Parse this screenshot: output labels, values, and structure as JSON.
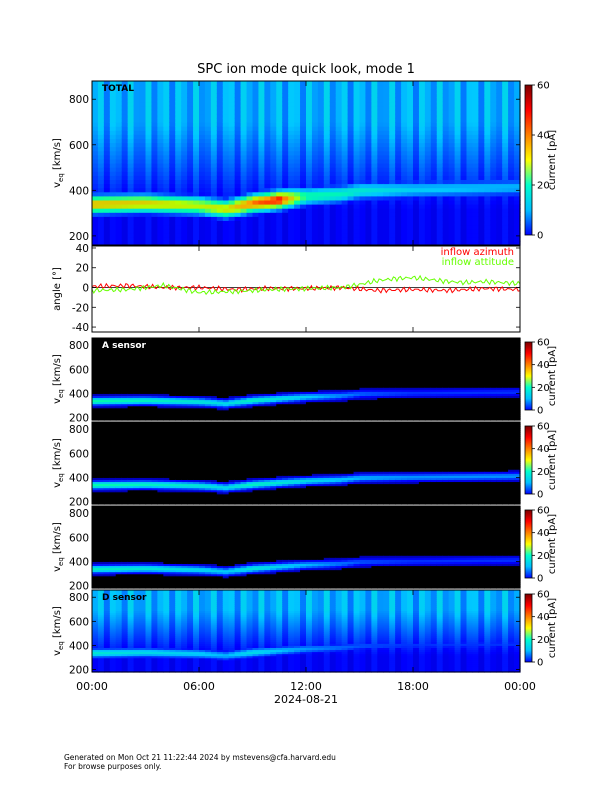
{
  "title": "SPC ion mode quick look, mode 1",
  "date_label": "2024-08-21",
  "x_ticks": [
    "00:00",
    "06:00",
    "12:00",
    "18:00",
    "00:00"
  ],
  "footer": {
    "line1": "Generated on Mon Oct 21 11:22:44 2024 by mstevens@cfa.harvard.edu",
    "line2": "For browse purposes only."
  },
  "colorbar": {
    "label": "current [pA]",
    "colors": [
      "#0000ff",
      "#00bfff",
      "#00ffcc",
      "#ffff00",
      "#ff8000",
      "#ff0000",
      "#7a0000"
    ]
  },
  "chart_data": [
    {
      "type": "heatmap",
      "panel_label": "TOTAL",
      "ylabel": "v_eq [km/s]",
      "yticks": [
        200,
        400,
        600,
        800
      ],
      "ylim": [
        160,
        880
      ],
      "colorbar_ticks": [
        0,
        20,
        40,
        60
      ],
      "colorbar_range": [
        0,
        60
      ],
      "background": "broad",
      "core_velocity_km_s": {
        "hours": [
          0,
          3,
          6,
          7.5,
          9,
          10.5,
          12,
          14,
          15,
          18,
          21,
          24
        ],
        "values": [
          340,
          345,
          335,
          320,
          345,
          360,
          375,
          385,
          400,
          405,
          410,
          415
        ]
      },
      "peak_current_pA": {
        "hours": [
          0,
          3,
          6,
          7.5,
          9,
          10.5,
          12,
          14,
          15,
          18,
          21,
          24
        ],
        "values": [
          46,
          44,
          40,
          42,
          50,
          55,
          30,
          28,
          26,
          22,
          21,
          20
        ]
      }
    },
    {
      "type": "line",
      "ylabel": "angle [°]",
      "yticks": [
        -40,
        -20,
        0,
        20,
        40
      ],
      "ylim": [
        -45,
        42
      ],
      "series": [
        {
          "name": "inflow azimuth",
          "color": "#ff0000",
          "x": [
            0,
            2,
            4,
            6,
            8,
            10,
            12,
            14,
            16,
            18,
            20,
            22,
            24
          ],
          "y": [
            1,
            2,
            0,
            0,
            -2,
            -1,
            -1,
            0,
            -3,
            -2,
            -3,
            -1,
            -2
          ]
        },
        {
          "name": "inflow attitude",
          "color": "#66ff00",
          "x": [
            0,
            2,
            4,
            6,
            8,
            10,
            12,
            14,
            15,
            16,
            17,
            18,
            19,
            20,
            21,
            22,
            24
          ],
          "y": [
            -3,
            -2,
            2,
            -5,
            -4,
            -2,
            -1,
            0,
            3,
            7,
            9,
            10,
            8,
            6,
            5,
            6,
            4
          ]
        }
      ]
    },
    {
      "type": "heatmap",
      "panel_label": "A sensor",
      "ylabel": "v_eq [km/s]",
      "yticks": [
        200,
        400,
        600,
        800
      ],
      "ylim": [
        180,
        860
      ],
      "colorbar_ticks": [
        0,
        20,
        40,
        60
      ],
      "colorbar_range": [
        0,
        60
      ],
      "background": "dark",
      "core_velocity_km_s": {
        "hours": [
          0,
          3,
          6,
          7.5,
          9,
          10.5,
          12,
          14,
          15,
          18,
          21,
          24
        ],
        "values": [
          340,
          345,
          335,
          320,
          345,
          360,
          375,
          385,
          400,
          405,
          410,
          415
        ]
      },
      "peak_current_pA": {
        "hours": [
          0,
          3,
          6,
          7.5,
          9,
          12,
          15,
          18,
          21,
          24
        ],
        "values": [
          30,
          28,
          26,
          24,
          28,
          22,
          15,
          12,
          12,
          12
        ]
      }
    },
    {
      "type": "heatmap",
      "ylabel": "v_eq [km/s]",
      "yticks": [
        200,
        400,
        600,
        800
      ],
      "ylim": [
        180,
        860
      ],
      "colorbar_ticks": [
        0,
        20,
        40,
        60
      ],
      "colorbar_range": [
        0,
        60
      ],
      "background": "dark",
      "core_velocity_km_s": {
        "hours": [
          0,
          3,
          6,
          7.5,
          9,
          10.5,
          12,
          14,
          15,
          18,
          21,
          24
        ],
        "values": [
          340,
          345,
          335,
          320,
          345,
          360,
          375,
          385,
          400,
          405,
          410,
          415
        ]
      },
      "peak_current_pA": {
        "hours": [
          0,
          3,
          6,
          7.5,
          9,
          12,
          15,
          18,
          21,
          24
        ],
        "values": [
          30,
          28,
          26,
          24,
          28,
          24,
          20,
          18,
          18,
          18
        ]
      }
    },
    {
      "type": "heatmap",
      "ylabel": "v_eq [km/s]",
      "yticks": [
        200,
        400,
        600,
        800
      ],
      "ylim": [
        180,
        860
      ],
      "colorbar_ticks": [
        0,
        20,
        40,
        60
      ],
      "colorbar_range": [
        0,
        60
      ],
      "background": "dark",
      "core_velocity_km_s": {
        "hours": [
          0,
          3,
          6,
          7.5,
          9,
          10.5,
          12,
          14,
          15,
          18,
          21,
          24
        ],
        "values": [
          340,
          345,
          335,
          320,
          345,
          360,
          375,
          385,
          400,
          405,
          410,
          415
        ]
      },
      "peak_current_pA": {
        "hours": [
          0,
          3,
          6,
          7.5,
          9,
          12,
          15,
          18,
          21,
          24
        ],
        "values": [
          28,
          26,
          24,
          22,
          26,
          20,
          14,
          12,
          12,
          12
        ]
      }
    },
    {
      "type": "heatmap",
      "panel_label": "D sensor",
      "ylabel": "v_eq [km/s]",
      "yticks": [
        200,
        400,
        600,
        800
      ],
      "ylim": [
        180,
        860
      ],
      "colorbar_ticks": [
        0,
        20,
        40,
        60
      ],
      "colorbar_range": [
        0,
        60
      ],
      "background": "broad",
      "core_velocity_km_s": {
        "hours": [
          0,
          3,
          6,
          7.5,
          9,
          10.5,
          12,
          14,
          15,
          18,
          21,
          24
        ],
        "values": [
          340,
          345,
          335,
          320,
          345,
          360,
          375,
          385,
          400,
          405,
          410,
          415
        ]
      },
      "peak_current_pA": {
        "hours": [
          0,
          3,
          6,
          7.5,
          9,
          12,
          15,
          18,
          21,
          24
        ],
        "values": [
          26,
          24,
          22,
          20,
          24,
          18,
          14,
          12,
          12,
          12
        ]
      }
    }
  ]
}
